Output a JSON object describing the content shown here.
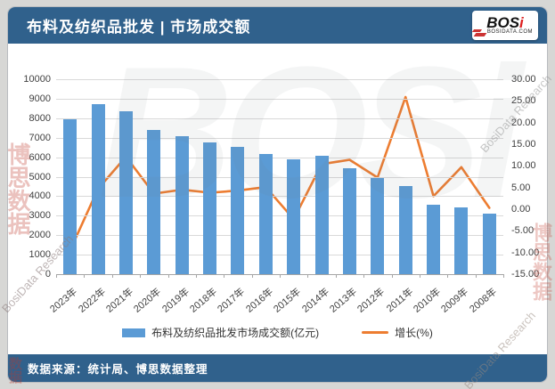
{
  "header": {
    "title": "布料及纺织品批发 | 市场成交额",
    "logo": {
      "text": "BOSi",
      "subtext": "BOSIDATA.COM"
    }
  },
  "footer": {
    "source": "数据来源：统计局、博思数据整理"
  },
  "watermarks": {
    "items": [
      {
        "text": "BOSi"
      },
      {
        "text": "博思数据"
      },
      {
        "text": "BosiData Research"
      },
      {
        "text": "BosiData Research"
      },
      {
        "text": "博思数据"
      },
      {
        "text": "BosiData Research"
      },
      {
        "text": "数据"
      }
    ]
  },
  "chart_data": {
    "type": "bar",
    "title": "布料及纺织品批发 | 市场成交额",
    "categories": [
      "2023年",
      "2022年",
      "2021年",
      "2020年",
      "2019年",
      "2018年",
      "2017年",
      "2016年",
      "2015年",
      "2014年",
      "2013年",
      "2012年",
      "2011年",
      "2010年",
      "2009年",
      "2008年"
    ],
    "series": [
      {
        "name": "布料及纺织品批发市场成交额(亿元)",
        "type": "bar",
        "axis": "left",
        "color": "#5b9bd5",
        "values": [
          7930,
          8740,
          8340,
          7400,
          7100,
          6760,
          6530,
          6180,
          5880,
          6060,
          5450,
          4920,
          4510,
          3570,
          3440,
          3110
        ]
      },
      {
        "name": "增长(%)",
        "type": "line",
        "axis": "right",
        "color": "#ed7d31",
        "values": [
          -9.5,
          4.7,
          12.1,
          3.6,
          4.5,
          3.8,
          4.3,
          5.1,
          -2.3,
          10.4,
          11.4,
          7.3,
          25.9,
          3.0,
          9.7,
          0.3
        ]
      }
    ],
    "left_axis": {
      "min": 0,
      "max": 10000,
      "step": 1000
    },
    "right_axis": {
      "min": -15,
      "max": 30,
      "step": 5,
      "decimals": 2
    },
    "grid": true,
    "legend_position": "bottom"
  }
}
